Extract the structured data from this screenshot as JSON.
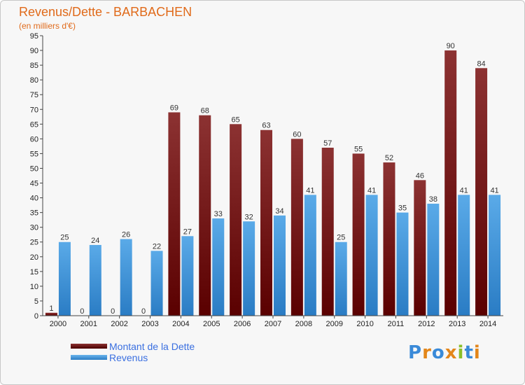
{
  "header": {
    "title": "Revenus/Dette - BARBACHEN",
    "subtitle": "(en milliers d'€)"
  },
  "legend": {
    "items": [
      {
        "label": "Montant de la Dette",
        "color": "#6b0f0f"
      },
      {
        "label": "Revenus",
        "color": "#3d94dc"
      }
    ]
  },
  "logo": {
    "text": "Proxiti",
    "letter_colors": [
      "#3a8ad8",
      "#e3861a",
      "#3a8ad8",
      "#e3861a",
      "#8bbf2a",
      "#3a8ad8",
      "#e3861a"
    ]
  },
  "chart_data": {
    "type": "bar",
    "categories": [
      "2000",
      "2001",
      "2002",
      "2003",
      "2004",
      "2005",
      "2006",
      "2007",
      "2008",
      "2009",
      "2010",
      "2011",
      "2012",
      "2013",
      "2014"
    ],
    "series": [
      {
        "name": "Montant de la Dette",
        "color": "#7a1a1a",
        "values": [
          1,
          0,
          0,
          0,
          69,
          68,
          65,
          63,
          60,
          57,
          55,
          52,
          46,
          90,
          84
        ]
      },
      {
        "name": "Revenus",
        "color": "#3d94dc",
        "values": [
          25,
          24,
          26,
          22,
          27,
          33,
          32,
          34,
          41,
          25,
          41,
          35,
          38,
          41,
          41
        ]
      }
    ],
    "ylim": [
      0,
      95
    ],
    "yticks": [
      "0",
      "5",
      "10",
      "15",
      "20",
      "25",
      "30",
      "35",
      "40",
      "45",
      "50",
      "55",
      "60",
      "65",
      "70",
      "75",
      "80",
      "85",
      "90",
      "95"
    ],
    "grid": false,
    "legend_position": "bottom-left"
  }
}
